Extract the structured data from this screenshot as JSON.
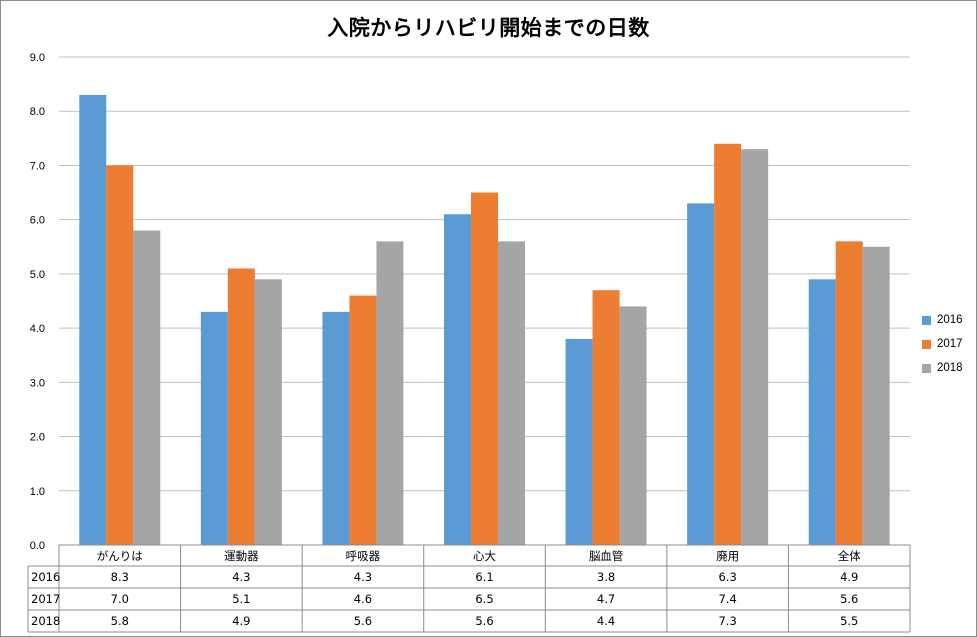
{
  "chart_data": {
    "type": "bar",
    "title": "入院からリハビリ開始までの日数",
    "categories": [
      "がんりは",
      "運動器",
      "呼吸器",
      "心大",
      "脳血管",
      "廃用",
      "全体"
    ],
    "series": [
      {
        "name": "2016",
        "color": "#5b9bd5",
        "values": [
          8.3,
          4.3,
          4.3,
          6.1,
          3.8,
          6.3,
          4.9
        ],
        "labels": [
          "8.3",
          "4.3",
          "4.3",
          "6.1",
          "3.8",
          "6.3",
          "4.9"
        ]
      },
      {
        "name": "2017",
        "color": "#ed7d31",
        "values": [
          7.0,
          5.1,
          4.6,
          6.5,
          4.7,
          7.4,
          5.6
        ],
        "labels": [
          "7.0",
          "5.1",
          "4.6",
          "6.5",
          "4.7",
          "7.4",
          "5.6"
        ]
      },
      {
        "name": "2018",
        "color": "#a5a5a5",
        "values": [
          5.8,
          4.9,
          5.6,
          5.6,
          4.4,
          7.3,
          5.5
        ],
        "labels": [
          "5.8",
          "4.9",
          "5.6",
          "5.6",
          "4.4",
          "7.3",
          "5.5"
        ]
      }
    ],
    "ylim": [
      0,
      9
    ],
    "yticks": [
      "0.0",
      "1.0",
      "2.0",
      "3.0",
      "4.0",
      "5.0",
      "6.0",
      "7.0",
      "8.0",
      "9.0"
    ],
    "grid": true,
    "legend": "right",
    "data_table": true
  }
}
